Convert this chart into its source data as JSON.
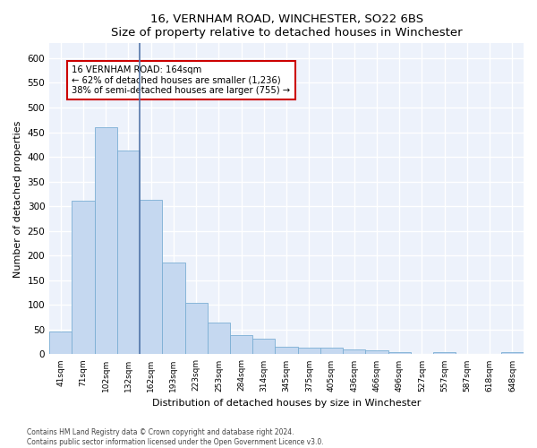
{
  "title1": "16, VERNHAM ROAD, WINCHESTER, SO22 6BS",
  "title2": "Size of property relative to detached houses in Winchester",
  "xlabel": "Distribution of detached houses by size in Winchester",
  "ylabel": "Number of detached properties",
  "bar_color": "#c5d8f0",
  "bar_edge_color": "#7bafd4",
  "vline_color": "#5577aa",
  "annotation_box_color": "#cc0000",
  "categories": [
    "41sqm",
    "71sqm",
    "102sqm",
    "132sqm",
    "162sqm",
    "193sqm",
    "223sqm",
    "253sqm",
    "284sqm",
    "314sqm",
    "345sqm",
    "375sqm",
    "405sqm",
    "436sqm",
    "466sqm",
    "496sqm",
    "527sqm",
    "557sqm",
    "587sqm",
    "618sqm",
    "648sqm"
  ],
  "values": [
    46,
    311,
    460,
    412,
    313,
    186,
    104,
    65,
    38,
    31,
    15,
    13,
    13,
    10,
    8,
    5,
    0,
    5,
    0,
    0,
    5
  ],
  "vline_position": 4.0,
  "annotation_text": "16 VERNHAM ROAD: 164sqm\n← 62% of detached houses are smaller (1,236)\n38% of semi-detached houses are larger (755) →",
  "ylim": [
    0,
    630
  ],
  "yticks": [
    0,
    50,
    100,
    150,
    200,
    250,
    300,
    350,
    400,
    450,
    500,
    550,
    600
  ],
  "footer1": "Contains HM Land Registry data © Crown copyright and database right 2024.",
  "footer2": "Contains public sector information licensed under the Open Government Licence v3.0.",
  "bg_color": "#edf2fb",
  "grid_color": "#ffffff",
  "fig_bg_color": "#ffffff"
}
